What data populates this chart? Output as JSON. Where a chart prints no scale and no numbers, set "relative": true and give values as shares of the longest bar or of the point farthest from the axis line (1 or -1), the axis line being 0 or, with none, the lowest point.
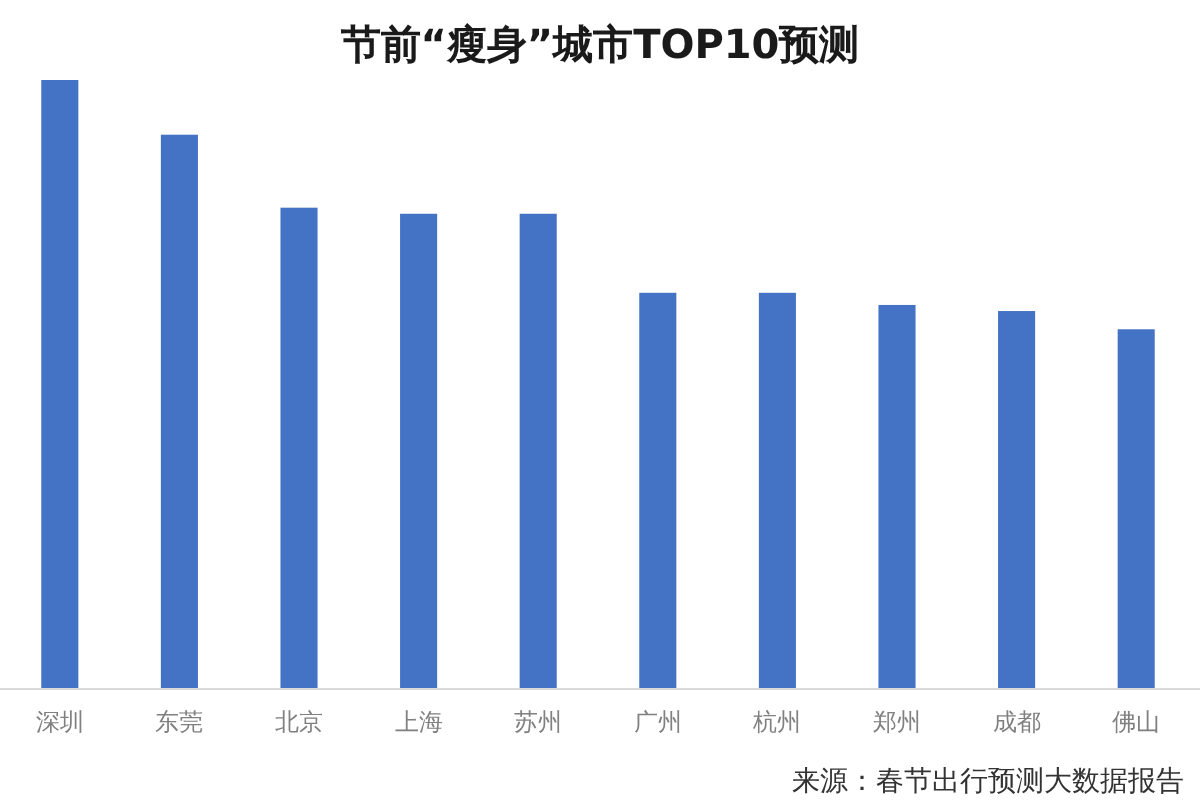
{
  "chart_data": {
    "type": "bar",
    "title": "节前“瘦身”城市TOP10预测",
    "categories": [
      "深圳",
      "东莞",
      "北京",
      "上海",
      "苏州",
      "广州",
      "杭州",
      "郑州",
      "成都",
      "佛山"
    ],
    "values": [
      1,
      0.91,
      0.79,
      0.78,
      0.78,
      0.65,
      0.65,
      0.63,
      0.62,
      0.59
    ],
    "color": "#4472c4",
    "relative": true,
    "annotations": [
      "来源：春节出行预测大数据报告"
    ]
  }
}
